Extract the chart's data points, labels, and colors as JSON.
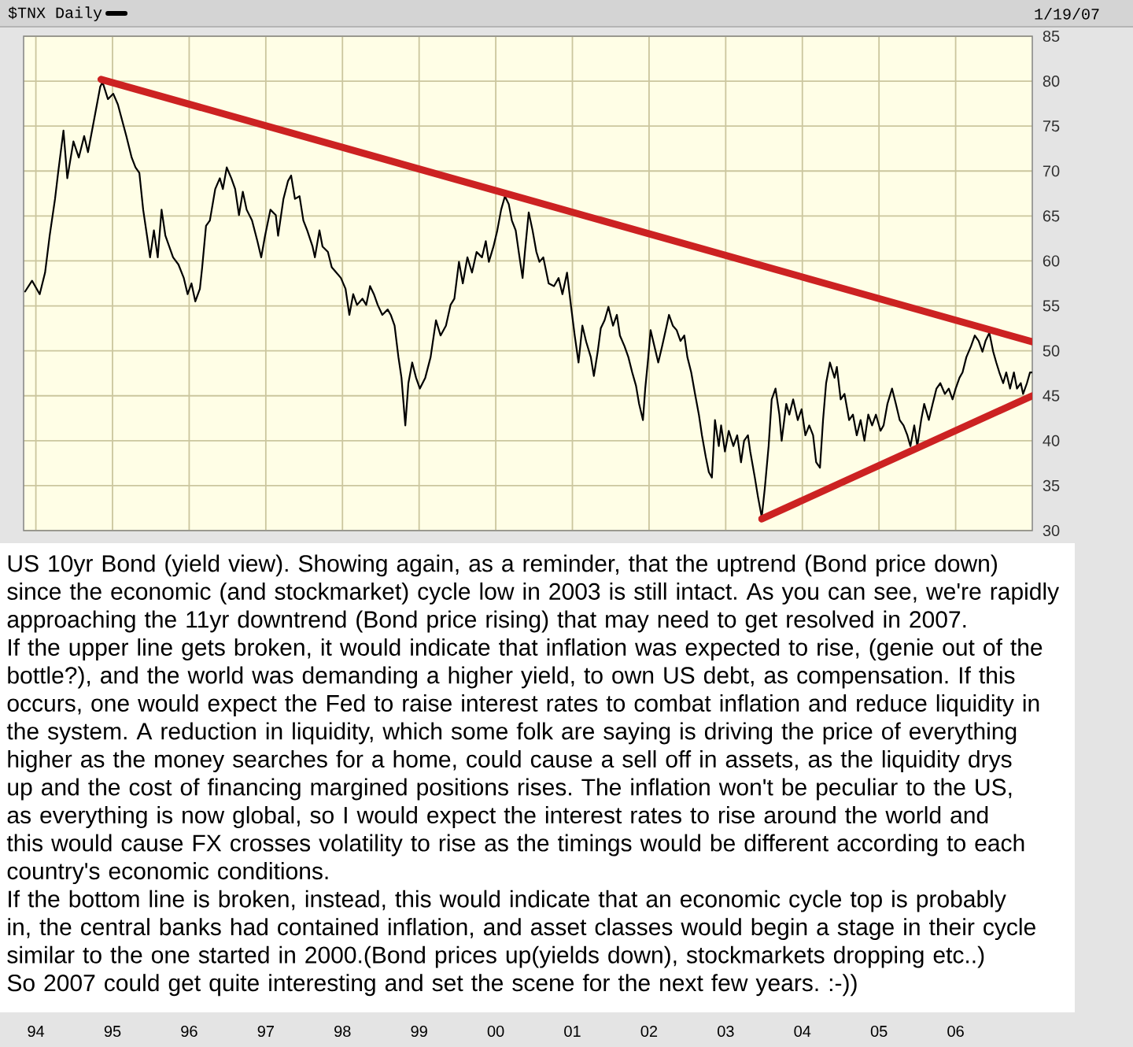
{
  "chart_data": {
    "type": "line",
    "series": [
      {
        "name": "$TNX Daily",
        "color": "#000000",
        "axis": "y2",
        "x": [
          1993.86,
          1993.95,
          1994.05,
          1994.12,
          1994.18,
          1994.25,
          1994.29,
          1994.36,
          1994.41,
          1994.49,
          1994.56,
          1994.63,
          1994.68,
          1994.77,
          1994.84,
          1994.87,
          1994.94,
          1995.01,
          1995.07,
          1995.18,
          1995.25,
          1995.3,
          1995.35,
          1995.4,
          1995.45,
          1995.49,
          1995.54,
          1995.59,
          1995.64,
          1995.69,
          1995.74,
          1995.79,
          1995.86,
          1995.93,
          1995.98,
          1996.03,
          1996.08,
          1996.14,
          1996.17,
          1996.22,
          1996.27,
          1996.34,
          1996.4,
          1996.44,
          1996.49,
          1996.55,
          1996.6,
          1996.65,
          1996.7,
          1996.75,
          1996.82,
          1996.89,
          1996.94,
          1996.99,
          1997.06,
          1997.13,
          1997.16,
          1997.23,
          1997.29,
          1997.33,
          1997.38,
          1997.44,
          1997.49,
          1997.54,
          1997.61,
          1997.64,
          1997.7,
          1997.74,
          1997.81,
          1997.86,
          1997.92,
          1997.98,
          1998.04,
          1998.09,
          1998.14,
          1998.19,
          1998.26,
          1998.31,
          1998.36,
          1998.41,
          1998.46,
          1998.52,
          1998.59,
          1998.63,
          1998.68,
          1998.73,
          1998.77,
          1998.82,
          1998.86,
          1998.91,
          1998.96,
          1999.01,
          1999.08,
          1999.15,
          1999.22,
          1999.28,
          1999.35,
          1999.41,
          1999.46,
          1999.52,
          1999.57,
          1999.63,
          1999.69,
          1999.75,
          1999.82,
          1999.87,
          1999.91,
          1999.97,
          2000.02,
          2000.07,
          2000.12,
          2000.17,
          2000.21,
          2000.26,
          2000.3,
          2000.35,
          2000.38,
          2000.43,
          2000.48,
          2000.53,
          2000.57,
          2000.62,
          2000.69,
          2000.76,
          2000.82,
          2000.87,
          2000.93,
          2000.98,
          2001.03,
          2001.08,
          2001.13,
          2001.18,
          2001.24,
          2001.28,
          2001.33,
          2001.37,
          2001.42,
          2001.47,
          2001.53,
          2001.58,
          2001.62,
          2001.68,
          2001.73,
          2001.78,
          2001.83,
          2001.87,
          2001.92,
          2001.95,
          2001.99,
          2002.02,
          2002.07,
          2002.12,
          2002.17,
          2002.23,
          2002.26,
          2002.31,
          2002.36,
          2002.41,
          2002.46,
          2002.5,
          2002.55,
          2002.6,
          2002.65,
          2002.69,
          2002.74,
          2002.78,
          2002.82,
          2002.86,
          2002.91,
          2002.94,
          2002.99,
          2003.04,
          2003.1,
          2003.15,
          2003.2,
          2003.24,
          2003.29,
          2003.32,
          2003.38,
          2003.42,
          2003.47,
          2003.51,
          2003.56,
          2003.6,
          2003.65,
          2003.7,
          2003.73,
          2003.79,
          2003.83,
          2003.88,
          2003.94,
          2003.99,
          2004.04,
          2004.09,
          2004.14,
          2004.18,
          2004.23,
          2004.27,
          2004.31,
          2004.36,
          2004.42,
          2004.45,
          2004.5,
          2004.55,
          2004.61,
          2004.66,
          2004.71,
          2004.76,
          2004.81,
          2004.86,
          2004.91,
          2004.96,
          2005.02,
          2005.06,
          2005.11,
          2005.17,
          2005.22,
          2005.27,
          2005.32,
          2005.37,
          2005.41,
          2005.46,
          2005.5,
          2005.55,
          2005.59,
          2005.65,
          2005.7,
          2005.75,
          2005.8,
          2005.86,
          2005.91,
          2005.96,
          2006.0,
          2006.05,
          2006.09,
          2006.14,
          2006.2,
          2006.25,
          2006.3,
          2006.35,
          2006.39,
          2006.44,
          2006.49,
          2006.53,
          2006.57,
          2006.62,
          2006.66,
          2006.71,
          2006.76,
          2006.8,
          2006.85,
          2006.88,
          2006.93,
          2006.97,
          2007.0
        ],
        "values": [
          56.6,
          57.8,
          56.3,
          58.7,
          62.8,
          66.9,
          69.8,
          74.5,
          69.2,
          73.3,
          71.5,
          73.9,
          72.1,
          76.2,
          79.4,
          79.9,
          78.0,
          78.6,
          77.4,
          73.9,
          71.5,
          70.4,
          69.8,
          65.7,
          62.8,
          60.4,
          63.4,
          60.4,
          65.7,
          62.8,
          61.6,
          60.4,
          59.6,
          58.1,
          56.3,
          57.5,
          55.5,
          56.9,
          59.3,
          63.9,
          64.5,
          68.0,
          69.2,
          68.0,
          70.4,
          69.2,
          68.0,
          65.1,
          67.7,
          65.7,
          64.5,
          62.2,
          60.4,
          62.8,
          65.7,
          65.1,
          62.8,
          66.9,
          68.9,
          69.5,
          66.9,
          67.2,
          64.5,
          63.4,
          61.6,
          60.4,
          63.4,
          61.6,
          61.0,
          59.3,
          58.7,
          58.1,
          56.9,
          54.0,
          56.3,
          55.1,
          55.8,
          55.1,
          57.2,
          56.3,
          55.1,
          54.0,
          54.6,
          54.0,
          52.8,
          49.3,
          47.0,
          41.7,
          46.4,
          48.7,
          47.0,
          45.8,
          47.0,
          49.3,
          53.4,
          51.7,
          52.8,
          55.1,
          55.8,
          59.9,
          57.5,
          60.4,
          58.7,
          61.0,
          60.4,
          62.2,
          59.9,
          61.6,
          63.4,
          65.7,
          67.2,
          66.3,
          64.5,
          63.4,
          61.0,
          58.1,
          61.0,
          65.4,
          63.4,
          61.0,
          59.9,
          60.4,
          57.5,
          57.2,
          58.1,
          56.3,
          58.7,
          55.1,
          51.7,
          48.7,
          52.8,
          51.0,
          49.3,
          47.2,
          49.9,
          52.5,
          53.4,
          54.9,
          52.8,
          54.0,
          51.7,
          50.5,
          49.3,
          47.6,
          46.1,
          44.1,
          42.3,
          45.8,
          49.3,
          52.3,
          50.5,
          48.7,
          50.5,
          52.8,
          54.0,
          52.8,
          52.3,
          51.1,
          51.7,
          49.3,
          47.6,
          45.2,
          42.9,
          40.6,
          38.2,
          36.5,
          35.9,
          42.3,
          39.4,
          41.7,
          38.8,
          41.1,
          39.4,
          40.6,
          37.6,
          40.0,
          40.6,
          38.8,
          35.9,
          33.8,
          31.5,
          34.7,
          39.4,
          44.6,
          45.8,
          42.9,
          40.0,
          44.1,
          42.9,
          44.6,
          42.3,
          43.5,
          40.6,
          41.7,
          40.6,
          37.6,
          37.0,
          42.3,
          46.4,
          48.7,
          47.0,
          48.2,
          44.6,
          45.2,
          42.3,
          42.9,
          40.6,
          42.3,
          40.0,
          42.9,
          41.7,
          42.9,
          41.1,
          41.7,
          44.1,
          45.8,
          44.1,
          42.3,
          41.7,
          40.6,
          39.4,
          41.7,
          39.4,
          42.3,
          44.1,
          42.3,
          44.1,
          45.8,
          46.4,
          45.2,
          45.8,
          44.6,
          45.8,
          47.0,
          47.6,
          49.3,
          50.5,
          51.7,
          51.1,
          49.9,
          51.1,
          52.0,
          49.9,
          48.7,
          47.6,
          46.4,
          47.6,
          45.8,
          47.6,
          45.8,
          46.4,
          45.2,
          46.4,
          47.6,
          47.6
        ]
      },
      {
        "color": "#cc2222",
        "axis": "y2",
        "x": [
          1994.85,
          2007.0
        ],
        "values": [
          80.2,
          51.0
        ]
      },
      {
        "color": "#cc2222",
        "axis": "y2",
        "x": [
          2003.47,
          2007.0
        ],
        "values": [
          31.3,
          45.0
        ]
      }
    ],
    "xlim": [
      1993.84,
      2007.0
    ],
    "xticks": [
      {
        "value": 1994,
        "label": "94"
      },
      {
        "value": 1995,
        "label": "95"
      },
      {
        "value": 1996,
        "label": "96"
      },
      {
        "value": 1997,
        "label": "97"
      },
      {
        "value": 1998,
        "label": "98"
      },
      {
        "value": 1999,
        "label": "99"
      },
      {
        "value": 2000,
        "label": "00"
      },
      {
        "value": 2001,
        "label": "01"
      },
      {
        "value": 2002,
        "label": "02"
      },
      {
        "value": 2003,
        "label": "03"
      },
      {
        "value": 2004,
        "label": "04"
      },
      {
        "value": 2005,
        "label": "05"
      },
      {
        "value": 2006,
        "label": "06"
      }
    ],
    "y2lim": [
      30,
      85
    ],
    "y2ticks": [
      30,
      35,
      40,
      45,
      50,
      55,
      60,
      65,
      70,
      75,
      80,
      85
    ],
    "grid": true,
    "legend": "top left",
    "annotations": [
      "1/19/07",
      "US 10yr Bond (yield view). Showing again, as a reminder, that the uptrend (Bond price down) since the economic (and stockmarket) cycle low in 2003 is still intact. As you can see, we're rapidly approaching the 11yr downtrend (Bond price rising) that may need to get resolved in 2007.",
      "If the upper line gets broken, it would indicate that inflation was expected to rise, (genie out of the bottle?), and the world was demanding a higher yield, to own US debt, as compensation. If this occurs, one would expect the Fed to raise interest rates to combat inflation and reduce liquidity in the system. A reduction in liquidity, which some folk are saying is driving the price of everything higher as the money searches for a home, could cause a sell off in assets, as the liquidity drys up and the cost of financing margined positions rises. The inflation won't be peculiar to the US, as everything is now global, so I would expect the interest rates to rise around the world and this would cause FX crosses volatility to rise as the timings would be different according to each country's economic conditions.",
      "If the bottom line is broken, instead, this would indicate that an economic cycle top is probably in, the central banks had contained inflation, and asset classes would begin a stage in their cycle similar to the one started in 2000.(Bond prices up(yields down), stockmarkets dropping etc..)",
      "So 2007 could get quite interesting and set the scene for the next few years. :-))"
    ]
  }
}
